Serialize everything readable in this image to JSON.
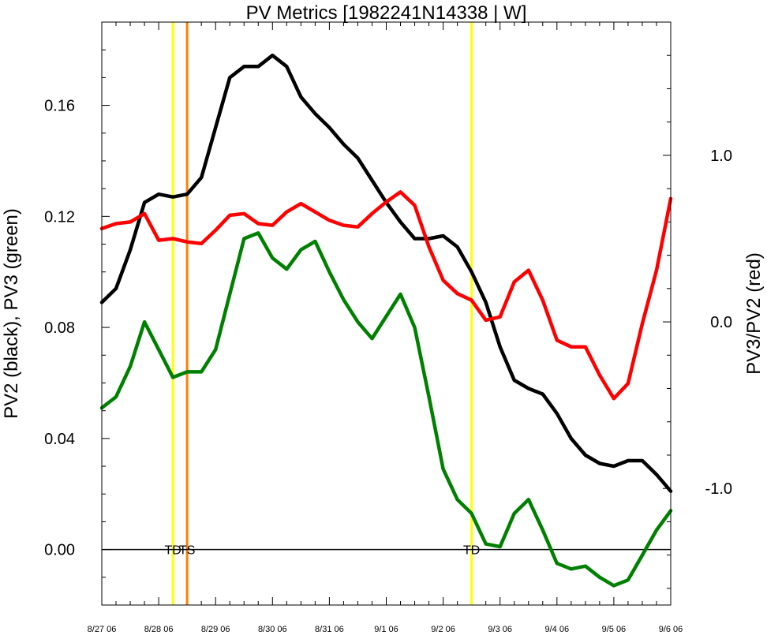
{
  "chart_data": {
    "type": "line",
    "title": "PV Metrics [1982241N14338 | W]",
    "ylabel_left": "PV2 (black), PV3 (green)",
    "ylabel_right": "PV3/PV2 (red)",
    "x_range": [
      "8/27 06",
      "9/6 06"
    ],
    "x_ticks": [
      "8/27 06",
      "8/28 06",
      "8/29 06",
      "8/30 06",
      "8/31 06",
      "9/1 06",
      "9/2 06",
      "9/3 06",
      "9/4 06",
      "9/5 06",
      "9/6 06"
    ],
    "y_left_range": [
      -0.02,
      0.19
    ],
    "y_left_ticks": [
      "0.00",
      "0.04",
      "0.08",
      "0.12",
      "0.16"
    ],
    "y_right_range": [
      -1.7,
      1.8
    ],
    "y_right_ticks": [
      "-1.0",
      "0.0",
      "1.0"
    ],
    "x_days": [
      0,
      0.25,
      0.5,
      0.75,
      1.0,
      1.25,
      1.5,
      1.75,
      2.0,
      2.25,
      2.5,
      2.75,
      3.0,
      3.25,
      3.5,
      3.75,
      4.0,
      4.25,
      4.5,
      4.75,
      5.0,
      5.25,
      5.5,
      5.75,
      6.0,
      6.25,
      6.5,
      6.75,
      7.0,
      7.25,
      7.5,
      7.75,
      8.0,
      8.25,
      8.5,
      8.75,
      9.0,
      9.25,
      9.5,
      9.75,
      10.0
    ],
    "series": [
      {
        "name": "PV2",
        "color": "#000000",
        "axis": "left",
        "values": [
          0.089,
          0.094,
          0.108,
          0.125,
          0.128,
          0.127,
          0.128,
          0.134,
          0.152,
          0.17,
          0.174,
          0.174,
          0.178,
          0.174,
          0.163,
          0.157,
          0.152,
          0.146,
          0.141,
          0.133,
          0.125,
          0.118,
          0.112,
          0.112,
          0.113,
          0.109,
          0.1,
          0.089,
          0.073,
          0.061,
          0.058,
          0.056,
          0.049,
          0.04,
          0.034,
          0.031,
          0.03,
          0.032,
          0.032,
          0.027,
          0.021
        ]
      },
      {
        "name": "PV3",
        "color": "#008000",
        "axis": "left",
        "values": [
          0.051,
          0.055,
          0.066,
          0.082,
          0.072,
          0.062,
          0.064,
          0.064,
          0.072,
          0.092,
          0.112,
          0.114,
          0.105,
          0.101,
          0.108,
          0.111,
          0.1,
          0.09,
          0.082,
          0.076,
          0.084,
          0.092,
          0.08,
          0.055,
          0.029,
          0.018,
          0.013,
          0.002,
          0.001,
          0.013,
          0.018,
          0.007,
          -0.005,
          -0.007,
          -0.006,
          -0.01,
          -0.013,
          -0.011,
          -0.002,
          0.007,
          0.014
        ]
      },
      {
        "name": "PV3/PV2",
        "color": "#ff0000",
        "axis": "right",
        "values": [
          0.56,
          0.59,
          0.6,
          0.65,
          0.49,
          0.5,
          0.48,
          0.47,
          0.55,
          0.64,
          0.65,
          0.59,
          0.58,
          0.66,
          0.71,
          0.66,
          0.61,
          0.58,
          0.57,
          0.65,
          0.72,
          0.78,
          0.7,
          0.45,
          0.25,
          0.17,
          0.13,
          0.01,
          0.03,
          0.24,
          0.31,
          0.13,
          -0.11,
          -0.15,
          -0.15,
          -0.32,
          -0.46,
          -0.37,
          -0.01,
          0.31,
          0.74
        ]
      }
    ],
    "events": [
      {
        "x": 1.25,
        "label": "TD",
        "color": "#ffff00"
      },
      {
        "x": 1.5,
        "label": "TS",
        "color": "#ff8000"
      },
      {
        "x": 6.5,
        "label": "TD",
        "color": "#ffff00"
      }
    ],
    "zero_line": 0.0,
    "grid": false,
    "legend": "none"
  }
}
